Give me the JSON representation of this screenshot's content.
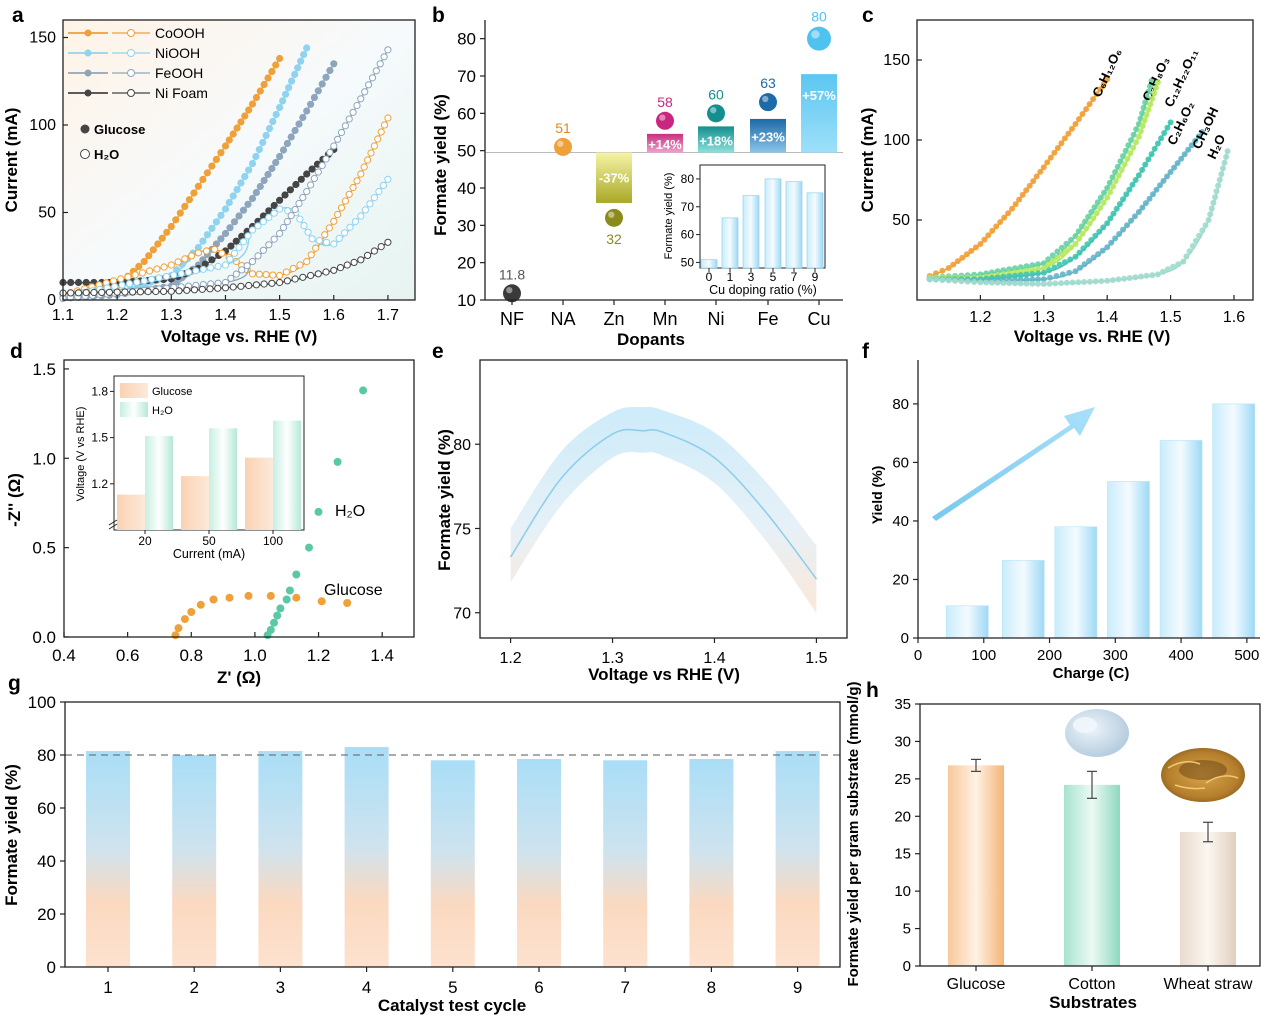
{
  "colors": {
    "orange": "#f0a038",
    "lightblue": "#8fd3f0",
    "steel": "#8ea6bd",
    "dark": "#454545",
    "cyan": "#4fc3f0",
    "teal": "#58c9a4",
    "olive": "#b8b830",
    "magenta": "#d0268a",
    "darkcyan": "#138f8f",
    "navy": "#1c6aa8",
    "grey": "#555555"
  },
  "chart_data": [
    {
      "panel": "a",
      "type": "line",
      "xlabel": "Voltage vs. RHE (V)",
      "ylabel": "Current (mA)",
      "xlim": [
        1.1,
        1.75
      ],
      "ylim": [
        0,
        160
      ],
      "xticks": [
        "1.1",
        "1.2",
        "1.3",
        "1.4",
        "1.5",
        "1.6",
        "1.7"
      ],
      "yticks": [
        "0",
        "50",
        "100",
        "150"
      ],
      "legend": [
        "CoOOH",
        "NiOOH",
        "FeOOH",
        "Ni Foam"
      ],
      "markers_legend": [
        "Glucose",
        "H₂O"
      ],
      "series": [
        {
          "name": "CoOOH Glucose",
          "color": "#f0a038",
          "filled": true,
          "x": [
            1.1,
            1.2,
            1.25,
            1.3,
            1.35,
            1.4,
            1.45,
            1.5
          ],
          "y": [
            2,
            8,
            22,
            42,
            65,
            88,
            112,
            138
          ]
        },
        {
          "name": "NiOOH Glucose",
          "color": "#8fd3f0",
          "filled": true,
          "x": [
            1.1,
            1.2,
            1.3,
            1.35,
            1.4,
            1.45,
            1.5,
            1.55
          ],
          "y": [
            1,
            4,
            14,
            30,
            52,
            78,
            110,
            144
          ]
        },
        {
          "name": "FeOOH Glucose",
          "color": "#8ea6bd",
          "filled": true,
          "x": [
            1.1,
            1.2,
            1.3,
            1.35,
            1.4,
            1.45,
            1.5,
            1.55,
            1.6
          ],
          "y": [
            1,
            3,
            8,
            20,
            38,
            58,
            82,
            108,
            135
          ]
        },
        {
          "name": "Ni Foam Glucose",
          "color": "#454545",
          "filled": true,
          "x": [
            1.1,
            1.2,
            1.3,
            1.35,
            1.4,
            1.45,
            1.5,
            1.55,
            1.6
          ],
          "y": [
            10,
            10,
            12,
            18,
            28,
            42,
            57,
            72,
            86
          ]
        },
        {
          "name": "CoOOH H2O",
          "color": "#f0a038",
          "filled": false,
          "x": [
            1.1,
            1.3,
            1.35,
            1.38,
            1.42,
            1.45,
            1.5,
            1.55,
            1.6,
            1.65,
            1.7
          ],
          "y": [
            3,
            20,
            27,
            29,
            22,
            15,
            14,
            22,
            45,
            72,
            104
          ]
        },
        {
          "name": "NiOOH H2O",
          "color": "#8fd3f0",
          "filled": false,
          "x": [
            1.1,
            1.4,
            1.45,
            1.5,
            1.53,
            1.56,
            1.6,
            1.65,
            1.7
          ],
          "y": [
            2,
            20,
            40,
            52,
            50,
            35,
            32,
            48,
            69
          ]
        },
        {
          "name": "FeOOH H2O",
          "color": "#8ea6bd",
          "filled": false,
          "x": [
            1.1,
            1.4,
            1.45,
            1.5,
            1.55,
            1.6,
            1.65,
            1.7
          ],
          "y": [
            1,
            10,
            22,
            38,
            62,
            88,
            115,
            143
          ]
        },
        {
          "name": "Ni Foam H2O",
          "color": "#454545",
          "filled": false,
          "x": [
            1.1,
            1.3,
            1.4,
            1.5,
            1.6,
            1.65,
            1.7
          ],
          "y": [
            4,
            5,
            7,
            10,
            17,
            23,
            33
          ]
        }
      ]
    },
    {
      "panel": "b",
      "type": "scatter",
      "xlabel": "Dopants",
      "ylabel": "Formate yield (%)",
      "ylim": [
        10,
        85
      ],
      "yticks": [
        "10",
        "20",
        "30",
        "40",
        "50",
        "60",
        "70",
        "80"
      ],
      "baseline": 49.5,
      "categories": [
        "NF",
        "NA",
        "Zn",
        "Mn",
        "Ni",
        "Fe",
        "Cu"
      ],
      "values": [
        11.8,
        51,
        32,
        58,
        60,
        63,
        80
      ],
      "value_labels": [
        "11.8",
        "51",
        "32",
        "58",
        "60",
        "63",
        "80"
      ],
      "bar_tops": [
        null,
        null,
        36,
        54.5,
        56.5,
        58.5,
        70.5
      ],
      "bar_labels": [
        "",
        "",
        "-37%",
        "+14%",
        "+18%",
        "+23%",
        "+57%"
      ],
      "inset": {
        "type": "bar",
        "xlabel": "Cu doping ratio (%)",
        "ylabel": "Formate yield (%)",
        "categories": [
          "0",
          "1",
          "3",
          "5",
          "7",
          "9"
        ],
        "values": [
          51,
          66,
          74,
          80,
          79,
          75
        ],
        "ylim": [
          48,
          85
        ],
        "yticks": [
          "50",
          "60",
          "70",
          "80"
        ]
      }
    },
    {
      "panel": "c",
      "type": "line",
      "xlabel": "Voltage vs. RHE (V)",
      "ylabel": "Current (mA)",
      "xlim": [
        1.1,
        1.63
      ],
      "ylim": [
        0,
        175
      ],
      "xticks": [
        "1.2",
        "1.3",
        "1.4",
        "1.5",
        "1.6"
      ],
      "yticks": [
        "50",
        "100",
        "150"
      ],
      "series": [
        {
          "name": "C6H12O6",
          "color": "#f0a038",
          "x": [
            1.12,
            1.15,
            1.2,
            1.25,
            1.3,
            1.35,
            1.4
          ],
          "y": [
            15,
            20,
            35,
            57,
            83,
            110,
            138
          ]
        },
        {
          "name": "C3H8O3",
          "color": "#66d0a4",
          "x": [
            1.12,
            1.2,
            1.3,
            1.35,
            1.4,
            1.45,
            1.47
          ],
          "y": [
            14,
            16,
            23,
            40,
            70,
            110,
            137
          ]
        },
        {
          "name": "C12H22O11",
          "color": "#b5e860",
          "x": [
            1.12,
            1.2,
            1.3,
            1.35,
            1.4,
            1.45,
            1.48
          ],
          "y": [
            14,
            14,
            20,
            35,
            64,
            102,
            136
          ]
        },
        {
          "name": "C2H6O2",
          "color": "#3fc4b0",
          "x": [
            1.12,
            1.2,
            1.3,
            1.35,
            1.4,
            1.45,
            1.5
          ],
          "y": [
            13,
            13,
            17,
            27,
            48,
            78,
            111
          ]
        },
        {
          "name": "CH3OH",
          "color": "#64b4c8",
          "x": [
            1.12,
            1.2,
            1.3,
            1.35,
            1.4,
            1.45,
            1.5,
            1.55
          ],
          "y": [
            13,
            12,
            13,
            18,
            33,
            55,
            80,
            105
          ]
        },
        {
          "name": "H2O",
          "color": "#9fdacc",
          "x": [
            1.12,
            1.2,
            1.3,
            1.4,
            1.48,
            1.52,
            1.56,
            1.59
          ],
          "y": [
            13,
            11,
            10,
            12,
            16,
            24,
            50,
            93
          ]
        }
      ],
      "series_labels": [
        "C₆H₁₂O₆",
        "C₃H₈O₃",
        "C₁₂H₂₂O₁₁",
        "C₂H₆O₂",
        "CH₃OH",
        "H₂O"
      ]
    },
    {
      "panel": "d",
      "type": "scatter",
      "xlabel": "Z' (Ω)",
      "ylabel": "-Z'' (Ω)",
      "xlim": [
        0.4,
        1.5
      ],
      "ylim": [
        0,
        1.55
      ],
      "xticks": [
        "0.4",
        "0.6",
        "0.8",
        "1.0",
        "1.2",
        "1.4"
      ],
      "yticks": [
        "0.0",
        "0.5",
        "1.0",
        "1.5"
      ],
      "labels": [
        "H₂O",
        "Glucose"
      ],
      "series": [
        {
          "name": "Glucose",
          "color": "#f0a038",
          "x": [
            0.75,
            0.76,
            0.78,
            0.8,
            0.83,
            0.87,
            0.92,
            0.98,
            1.05,
            1.13,
            1.21,
            1.29
          ],
          "y": [
            0.01,
            0.05,
            0.1,
            0.14,
            0.18,
            0.21,
            0.22,
            0.23,
            0.23,
            0.22,
            0.2,
            0.19
          ]
        },
        {
          "name": "H2O",
          "color": "#58c9a4",
          "x": [
            1.04,
            1.05,
            1.06,
            1.07,
            1.08,
            1.1,
            1.11,
            1.13,
            1.17,
            1.2,
            1.26,
            1.34
          ],
          "y": [
            0.01,
            0.04,
            0.08,
            0.12,
            0.16,
            0.21,
            0.26,
            0.35,
            0.5,
            0.7,
            0.98,
            1.38
          ]
        }
      ],
      "inset": {
        "type": "bar",
        "xlabel": "Current (mA)",
        "ylabel": "Voltage (V vs RHE)",
        "categories": [
          "20",
          "50",
          "100"
        ],
        "series": [
          {
            "name": "Glucose",
            "values": [
              1.13,
              1.25,
              1.37
            ]
          },
          {
            "name": "H₂O",
            "values": [
              1.51,
              1.56,
              1.61
            ]
          }
        ],
        "ylim": [
          0.9,
          1.9
        ],
        "yticks": [
          "1.2",
          "1.5",
          "1.8"
        ]
      }
    },
    {
      "panel": "e",
      "type": "area",
      "xlabel": "Voltage vs RHE (V)",
      "ylabel": "Formate yield (%)",
      "xlim": [
        1.17,
        1.53
      ],
      "ylim": [
        68.5,
        85
      ],
      "xticks": [
        "1.2",
        "1.3",
        "1.4",
        "1.5"
      ],
      "yticks": [
        "70",
        "75",
        "80"
      ],
      "x": [
        1.2,
        1.25,
        1.3,
        1.33,
        1.35,
        1.4,
        1.45,
        1.5
      ],
      "mean": [
        73.3,
        78.0,
        80.6,
        80.8,
        80.7,
        79.2,
        76.0,
        72.0
      ],
      "upper": [
        75.0,
        79.6,
        81.9,
        82.2,
        82.0,
        80.7,
        77.8,
        74.0
      ],
      "lower": [
        71.8,
        76.4,
        79.2,
        79.5,
        79.3,
        77.7,
        74.3,
        70.0
      ]
    },
    {
      "panel": "f",
      "type": "bar",
      "xlabel": "Charge (C)",
      "ylabel": "Yield (%)",
      "xlim": [
        0,
        520
      ],
      "ylim": [
        0,
        95
      ],
      "xticks": [
        "0",
        "100",
        "200",
        "300",
        "400",
        "500"
      ],
      "yticks": [
        "0",
        "20",
        "40",
        "60",
        "80"
      ],
      "x": [
        75,
        160,
        240,
        320,
        400,
        480
      ],
      "values": [
        11,
        26.5,
        38,
        53.5,
        67.5,
        80
      ]
    },
    {
      "panel": "g",
      "type": "bar",
      "xlabel": "Catalyst test cycle",
      "ylabel": "Formate yield (%)",
      "ylim": [
        0,
        100
      ],
      "yticks": [
        "0",
        "20",
        "40",
        "60",
        "80",
        "100"
      ],
      "reference": 80,
      "categories": [
        "1",
        "2",
        "3",
        "4",
        "5",
        "6",
        "7",
        "8",
        "9"
      ],
      "values": [
        81.5,
        80,
        81.5,
        83,
        78,
        78.5,
        78,
        78.5,
        81.5
      ]
    },
    {
      "panel": "h",
      "type": "bar",
      "xlabel": "Substrates",
      "ylabel": "Formate yield per gram substrate (mmol/g)",
      "ylim": [
        0,
        35
      ],
      "yticks": [
        "0",
        "5",
        "10",
        "15",
        "20",
        "25",
        "30",
        "35"
      ],
      "categories": [
        "Glucose",
        "Cotton",
        "Wheat straw"
      ],
      "values": [
        26.8,
        24.2,
        17.9
      ],
      "errors": [
        0.8,
        1.8,
        1.3
      ]
    }
  ],
  "panels": {
    "a": {
      "letter": "a",
      "xlabel": "Voltage vs. RHE (V)",
      "ylabel": "Current (mA)",
      "legend": [
        "CoOOH",
        "NiOOH",
        "FeOOH",
        "Ni Foam"
      ],
      "marker_glucose": "Glucose",
      "marker_h2o": "H₂O"
    },
    "b": {
      "letter": "b",
      "xlabel": "Dopants",
      "ylabel": "Formate yield (%)",
      "inset_xlabel": "Cu doping ratio (%)",
      "inset_ylabel": "Formate yield (%)"
    },
    "c": {
      "letter": "c",
      "xlabel": "Voltage vs. RHE (V)",
      "ylabel": "Current (mA)"
    },
    "d": {
      "letter": "d",
      "xlabel": "Z' (Ω)",
      "ylabel": "-Z'' (Ω)",
      "label_h2o": "H₂O",
      "label_glucose": "Glucose",
      "inset_xlabel": "Current (mA)",
      "inset_ylabel": "Voltage (V vs RHE)",
      "inset_legend": [
        "Glucose",
        "H₂O"
      ]
    },
    "e": {
      "letter": "e",
      "xlabel": "Voltage vs RHE (V)",
      "ylabel": "Formate yield (%)"
    },
    "f": {
      "letter": "f",
      "xlabel": "Charge (C)",
      "ylabel": "Yield (%)"
    },
    "g": {
      "letter": "g",
      "xlabel": "Catalyst test cycle",
      "ylabel": "Formate yield (%)"
    },
    "h": {
      "letter": "h",
      "xlabel": "Substrates",
      "ylabel": "Formate yield per gram substrate (mmol/g)"
    }
  }
}
